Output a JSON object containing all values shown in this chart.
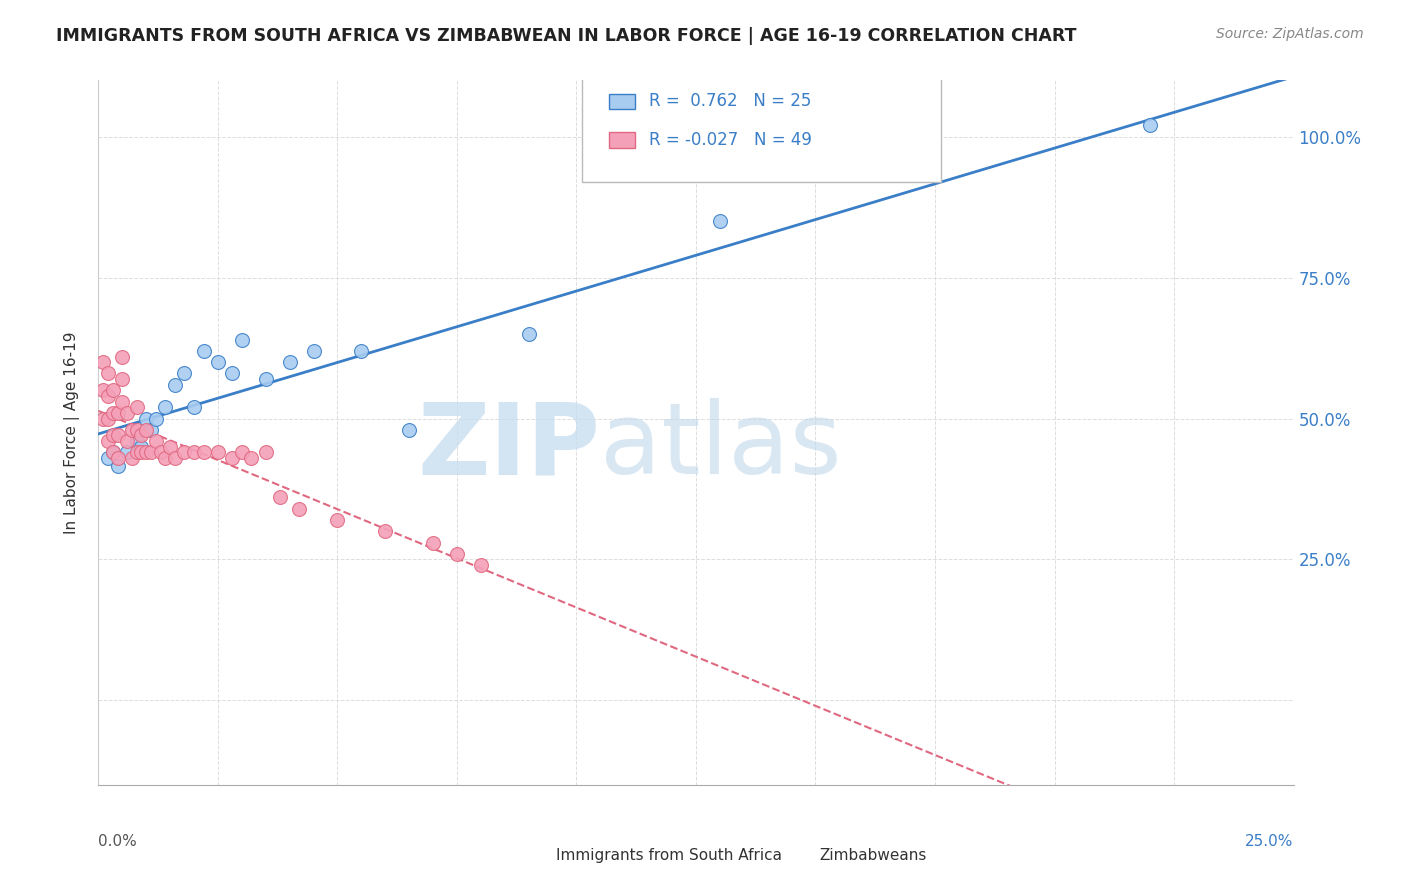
{
  "title": "IMMIGRANTS FROM SOUTH AFRICA VS ZIMBABWEAN IN LABOR FORCE | AGE 16-19 CORRELATION CHART",
  "source": "Source: ZipAtlas.com",
  "ylabel": "In Labor Force | Age 16-19",
  "xlim": [
    0.0,
    0.25
  ],
  "ylim": [
    -0.15,
    1.1
  ],
  "color_blue": "#A8CCF0",
  "color_pink": "#F4A0B8",
  "line_blue": "#3A7EC8",
  "line_pink": "#E06880",
  "background": "#FFFFFF",
  "south_africa_x": [
    0.002,
    0.003,
    0.004,
    0.006,
    0.008,
    0.009,
    0.01,
    0.011,
    0.012,
    0.014,
    0.016,
    0.018,
    0.02,
    0.022,
    0.025,
    0.028,
    0.03,
    0.035,
    0.04,
    0.045,
    0.055,
    0.065,
    0.09,
    0.13,
    0.22
  ],
  "south_africa_y": [
    0.43,
    0.44,
    0.415,
    0.44,
    0.46,
    0.45,
    0.5,
    0.48,
    0.5,
    0.52,
    0.56,
    0.58,
    0.52,
    0.62,
    0.6,
    0.58,
    0.64,
    0.57,
    0.6,
    0.62,
    0.62,
    0.48,
    0.65,
    0.85,
    1.02
  ],
  "zimbabwe_x": [
    0.001,
    0.001,
    0.001,
    0.002,
    0.002,
    0.002,
    0.002,
    0.003,
    0.003,
    0.003,
    0.003,
    0.004,
    0.004,
    0.004,
    0.005,
    0.005,
    0.005,
    0.006,
    0.006,
    0.007,
    0.007,
    0.008,
    0.008,
    0.008,
    0.009,
    0.009,
    0.01,
    0.01,
    0.011,
    0.012,
    0.013,
    0.014,
    0.015,
    0.016,
    0.018,
    0.02,
    0.022,
    0.025,
    0.028,
    0.03,
    0.032,
    0.035,
    0.038,
    0.042,
    0.05,
    0.06,
    0.07,
    0.075,
    0.08
  ],
  "zimbabwe_y": [
    0.5,
    0.55,
    0.6,
    0.46,
    0.5,
    0.54,
    0.58,
    0.44,
    0.47,
    0.51,
    0.55,
    0.43,
    0.47,
    0.51,
    0.53,
    0.57,
    0.61,
    0.46,
    0.51,
    0.43,
    0.48,
    0.44,
    0.48,
    0.52,
    0.44,
    0.47,
    0.44,
    0.48,
    0.44,
    0.46,
    0.44,
    0.43,
    0.45,
    0.43,
    0.44,
    0.44,
    0.44,
    0.44,
    0.43,
    0.44,
    0.43,
    0.44,
    0.36,
    0.34,
    0.32,
    0.3,
    0.28,
    0.26,
    0.24
  ],
  "ytick_positions": [
    0.0,
    0.25,
    0.5,
    0.75,
    1.0
  ],
  "ytick_labels_right": [
    "",
    "25.0%",
    "50.0%",
    "75.0%",
    "100.0%"
  ],
  "grid_color": "#DDDDDD",
  "watermark_zip_color": "#C5DCF0",
  "watermark_atlas_color": "#C0D8EC"
}
